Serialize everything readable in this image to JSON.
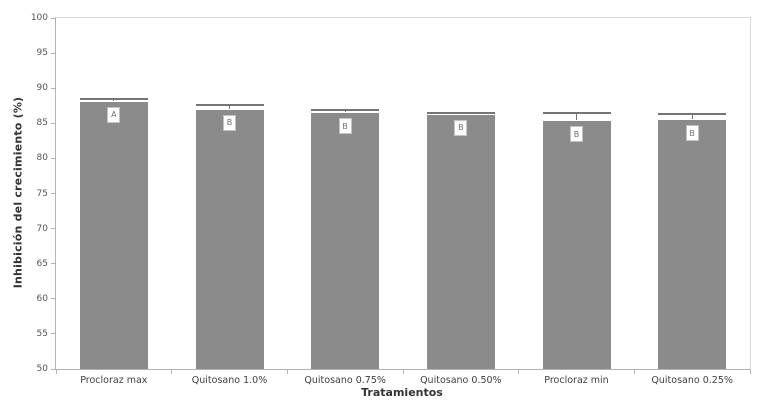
{
  "chart_data": {
    "type": "bar",
    "title": "",
    "xlabel": "Tratamientos",
    "ylabel": "Inhibición del crecimiento (%)",
    "ylim": [
      50,
      100
    ],
    "yticks": [
      50,
      55,
      60,
      65,
      70,
      75,
      80,
      85,
      90,
      95,
      100
    ],
    "grid": false,
    "legend": "none",
    "categories": [
      "Procloraz max",
      "Quitosano 1.0%",
      "Quitosano 0.75%",
      "Quitosano 0.50%",
      "Procloraz min",
      "Quitosano 0.25%"
    ],
    "values": [
      88.1,
      86.9,
      86.4,
      86.2,
      85.3,
      85.4
    ],
    "upper_errors": [
      0.3,
      0.7,
      0.5,
      0.2,
      1.2,
      0.9
    ],
    "bar_labels": [
      "A",
      "B",
      "B",
      "B",
      "B",
      "B"
    ],
    "colors": {
      "bar": "#8b8b8b",
      "error_bar": "#757575",
      "axis_line": "#b3b3b3",
      "plot_border": "#dadada",
      "tick_label": "#555555",
      "category_label": "#404040",
      "title_text": "#333333",
      "badge_bg": "#ffffff",
      "badge_border": "#c2c2c2",
      "badge_text": "#707070",
      "background": "#ffffff"
    }
  }
}
